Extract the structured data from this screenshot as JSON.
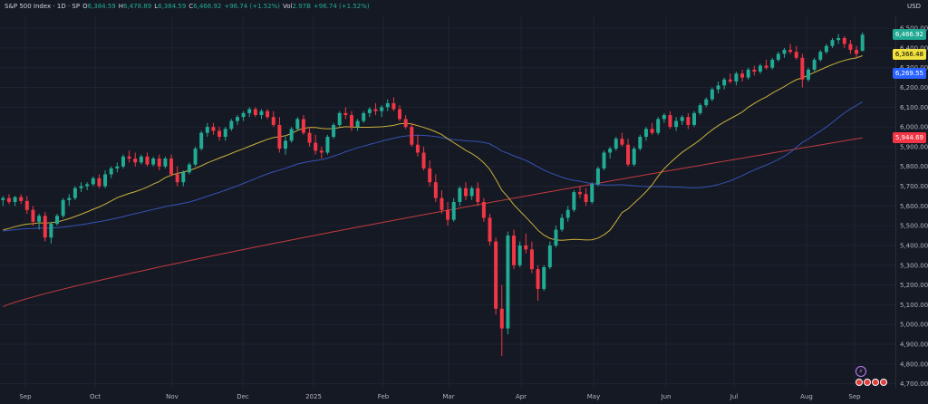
{
  "header": {
    "symbol_label": "S&P 500 Index · 1D · SP",
    "open_label": "O",
    "open": "6,384.59",
    "high_label": "H",
    "high": "6,478.89",
    "low_label": "L",
    "low": "6,384.59",
    "close_label": "C",
    "close": "6,466.92",
    "change": "+96.74 (+1.52%)",
    "vol_label": "Vol",
    "vol": "2.97B",
    "vol_change": "+96.74 (+1.52%)",
    "currency": "USD"
  },
  "price_tags": {
    "last": "6,466.92",
    "ma20": "6,366.48",
    "ma50": "6,269.55",
    "ma200": "5,944.69"
  },
  "colors": {
    "background": "#151924",
    "grid": "#1f2330",
    "up": "#22ab94",
    "down": "#f23645",
    "ma20": "#c9b13b",
    "ma50": "#3553b4",
    "ma200": "#c23b3f",
    "tag_last": "#22ab94",
    "tag_ma20": "#f0e040",
    "tag_ma50": "#2962ff",
    "tag_ma200": "#f23645"
  },
  "chart_data": {
    "type": "candlestick",
    "y_axis_ticks": [
      "4,700.00",
      "4,800.00",
      "4,900.00",
      "5,000.00",
      "5,100.00",
      "5,200.00",
      "5,300.00",
      "5,400.00",
      "5,500.00",
      "5,600.00",
      "5,700.00",
      "5,800.00",
      "5,900.00",
      "6,000.00",
      "6,100.00",
      "6,200.00",
      "6,300.00",
      "6,400.00",
      "6,500.00"
    ],
    "x_axis_ticks": [
      "Sep",
      "Oct",
      "Nov",
      "Dec",
      "2025",
      "Feb",
      "Mar",
      "Apr",
      "May",
      "Jun",
      "Jul",
      "Aug",
      "Sep"
    ],
    "ylim": [
      4680,
      6560
    ],
    "candles": [
      [
        5630,
        5650,
        5600,
        5640
      ],
      [
        5640,
        5660,
        5610,
        5620
      ],
      [
        5620,
        5650,
        5600,
        5645
      ],
      [
        5645,
        5660,
        5610,
        5625
      ],
      [
        5625,
        5650,
        5560,
        5580
      ],
      [
        5580,
        5600,
        5500,
        5520
      ],
      [
        5520,
        5560,
        5480,
        5550
      ],
      [
        5550,
        5570,
        5420,
        5440
      ],
      [
        5440,
        5520,
        5410,
        5510
      ],
      [
        5510,
        5560,
        5500,
        5550
      ],
      [
        5550,
        5640,
        5540,
        5630
      ],
      [
        5630,
        5660,
        5600,
        5640
      ],
      [
        5640,
        5700,
        5630,
        5690
      ],
      [
        5690,
        5720,
        5670,
        5700
      ],
      [
        5700,
        5720,
        5680,
        5710
      ],
      [
        5710,
        5750,
        5700,
        5740
      ],
      [
        5740,
        5760,
        5690,
        5700
      ],
      [
        5700,
        5780,
        5690,
        5760
      ],
      [
        5760,
        5800,
        5740,
        5790
      ],
      [
        5790,
        5820,
        5770,
        5800
      ],
      [
        5800,
        5860,
        5790,
        5850
      ],
      [
        5850,
        5880,
        5820,
        5840
      ],
      [
        5840,
        5870,
        5800,
        5820
      ],
      [
        5820,
        5860,
        5810,
        5850
      ],
      [
        5850,
        5870,
        5800,
        5810
      ],
      [
        5810,
        5850,
        5800,
        5840
      ],
      [
        5840,
        5860,
        5780,
        5800
      ],
      [
        5800,
        5850,
        5790,
        5840
      ],
      [
        5840,
        5860,
        5750,
        5760
      ],
      [
        5760,
        5800,
        5700,
        5720
      ],
      [
        5720,
        5780,
        5700,
        5770
      ],
      [
        5770,
        5820,
        5760,
        5810
      ],
      [
        5810,
        5900,
        5800,
        5890
      ],
      [
        5890,
        5980,
        5880,
        5970
      ],
      [
        5970,
        6020,
        5950,
        6000
      ],
      [
        6000,
        6020,
        5960,
        5980
      ],
      [
        5980,
        6000,
        5930,
        5950
      ],
      [
        5950,
        6000,
        5930,
        5990
      ],
      [
        5990,
        6040,
        5980,
        6030
      ],
      [
        6030,
        6060,
        6010,
        6050
      ],
      [
        6050,
        6080,
        6030,
        6070
      ],
      [
        6070,
        6100,
        6050,
        6090
      ],
      [
        6090,
        6100,
        6050,
        6060
      ],
      [
        6060,
        6090,
        6040,
        6080
      ],
      [
        6080,
        6090,
        6040,
        6050
      ],
      [
        6050,
        6080,
        6000,
        6010
      ],
      [
        6010,
        6050,
        5870,
        5890
      ],
      [
        5890,
        5950,
        5860,
        5930
      ],
      [
        5930,
        6000,
        5920,
        5990
      ],
      [
        5990,
        6050,
        5980,
        6040
      ],
      [
        6040,
        6060,
        5960,
        5970
      ],
      [
        5970,
        6000,
        5900,
        5920
      ],
      [
        5920,
        5960,
        5860,
        5880
      ],
      [
        5880,
        5900,
        5840,
        5870
      ],
      [
        5870,
        5960,
        5860,
        5950
      ],
      [
        5950,
        6020,
        5940,
        6010
      ],
      [
        6010,
        6080,
        6000,
        6070
      ],
      [
        6070,
        6100,
        6040,
        6060
      ],
      [
        6060,
        6080,
        5980,
        6000
      ],
      [
        6000,
        6040,
        5980,
        6030
      ],
      [
        6030,
        6080,
        6020,
        6070
      ],
      [
        6070,
        6100,
        6050,
        6090
      ],
      [
        6090,
        6120,
        6060,
        6080
      ],
      [
        6080,
        6110,
        6050,
        6100
      ],
      [
        6100,
        6140,
        6080,
        6120
      ],
      [
        6120,
        6150,
        6080,
        6090
      ],
      [
        6090,
        6110,
        6030,
        6040
      ],
      [
        6040,
        6060,
        5990,
        6000
      ],
      [
        6000,
        6020,
        5900,
        5910
      ],
      [
        5910,
        5960,
        5850,
        5870
      ],
      [
        5870,
        5900,
        5780,
        5790
      ],
      [
        5790,
        5830,
        5700,
        5720
      ],
      [
        5720,
        5760,
        5620,
        5640
      ],
      [
        5640,
        5680,
        5560,
        5580
      ],
      [
        5580,
        5620,
        5500,
        5530
      ],
      [
        5530,
        5640,
        5520,
        5620
      ],
      [
        5620,
        5700,
        5600,
        5690
      ],
      [
        5690,
        5720,
        5630,
        5650
      ],
      [
        5650,
        5700,
        5630,
        5690
      ],
      [
        5690,
        5720,
        5600,
        5620
      ],
      [
        5620,
        5640,
        5520,
        5540
      ],
      [
        5540,
        5560,
        5400,
        5420
      ],
      [
        5420,
        5440,
        5050,
        5080
      ],
      [
        5080,
        5200,
        4840,
        4980
      ],
      [
        4980,
        5470,
        4950,
        5450
      ],
      [
        5450,
        5480,
        5280,
        5300
      ],
      [
        5300,
        5420,
        5290,
        5400
      ],
      [
        5400,
        5460,
        5360,
        5380
      ],
      [
        5380,
        5420,
        5260,
        5280
      ],
      [
        5280,
        5300,
        5120,
        5180
      ],
      [
        5180,
        5300,
        5170,
        5290
      ],
      [
        5290,
        5420,
        5280,
        5400
      ],
      [
        5400,
        5500,
        5390,
        5480
      ],
      [
        5480,
        5560,
        5470,
        5540
      ],
      [
        5540,
        5600,
        5520,
        5580
      ],
      [
        5580,
        5680,
        5570,
        5670
      ],
      [
        5670,
        5700,
        5640,
        5660
      ],
      [
        5660,
        5690,
        5600,
        5620
      ],
      [
        5620,
        5720,
        5610,
        5710
      ],
      [
        5710,
        5800,
        5700,
        5790
      ],
      [
        5790,
        5880,
        5780,
        5870
      ],
      [
        5870,
        5900,
        5840,
        5890
      ],
      [
        5890,
        5950,
        5880,
        5940
      ],
      [
        5940,
        5970,
        5900,
        5910
      ],
      [
        5910,
        5940,
        5800,
        5810
      ],
      [
        5810,
        5900,
        5800,
        5890
      ],
      [
        5890,
        5960,
        5880,
        5950
      ],
      [
        5950,
        6000,
        5930,
        5990
      ],
      [
        5990,
        6020,
        5960,
        5970
      ],
      [
        5970,
        6050,
        5960,
        6040
      ],
      [
        6040,
        6070,
        6020,
        6060
      ],
      [
        6060,
        6080,
        5990,
        6000
      ],
      [
        6000,
        6050,
        5980,
        6030
      ],
      [
        6030,
        6060,
        6010,
        6050
      ],
      [
        6050,
        6070,
        5990,
        6010
      ],
      [
        6010,
        6080,
        6000,
        6070
      ],
      [
        6070,
        6120,
        6060,
        6110
      ],
      [
        6110,
        6150,
        6100,
        6140
      ],
      [
        6140,
        6200,
        6130,
        6190
      ],
      [
        6190,
        6230,
        6170,
        6210
      ],
      [
        6210,
        6250,
        6190,
        6240
      ],
      [
        6240,
        6270,
        6220,
        6230
      ],
      [
        6230,
        6280,
        6210,
        6270
      ],
      [
        6270,
        6290,
        6230,
        6250
      ],
      [
        6250,
        6300,
        6240,
        6290
      ],
      [
        6290,
        6310,
        6260,
        6280
      ],
      [
        6280,
        6320,
        6270,
        6310
      ],
      [
        6310,
        6340,
        6290,
        6300
      ],
      [
        6300,
        6350,
        6290,
        6340
      ],
      [
        6340,
        6380,
        6330,
        6370
      ],
      [
        6370,
        6400,
        6350,
        6390
      ],
      [
        6390,
        6420,
        6370,
        6380
      ],
      [
        6380,
        6410,
        6340,
        6350
      ],
      [
        6350,
        6370,
        6200,
        6240
      ],
      [
        6240,
        6300,
        6230,
        6290
      ],
      [
        6290,
        6350,
        6280,
        6340
      ],
      [
        6340,
        6390,
        6330,
        6380
      ],
      [
        6380,
        6420,
        6370,
        6410
      ],
      [
        6410,
        6450,
        6400,
        6440
      ],
      [
        6440,
        6470,
        6420,
        6450
      ],
      [
        6450,
        6460,
        6400,
        6420
      ],
      [
        6420,
        6440,
        6370,
        6390
      ],
      [
        6390,
        6410,
        6350,
        6370
      ],
      [
        6384.59,
        6478.89,
        6384.59,
        6466.92
      ]
    ],
    "ma_start_values": {
      "ma20": 5470,
      "ma50": 5470,
      "ma200": 5090
    },
    "ma200_end": 5944.69,
    "ma50_end": 6269.55,
    "ma20_end": 6366.48
  }
}
